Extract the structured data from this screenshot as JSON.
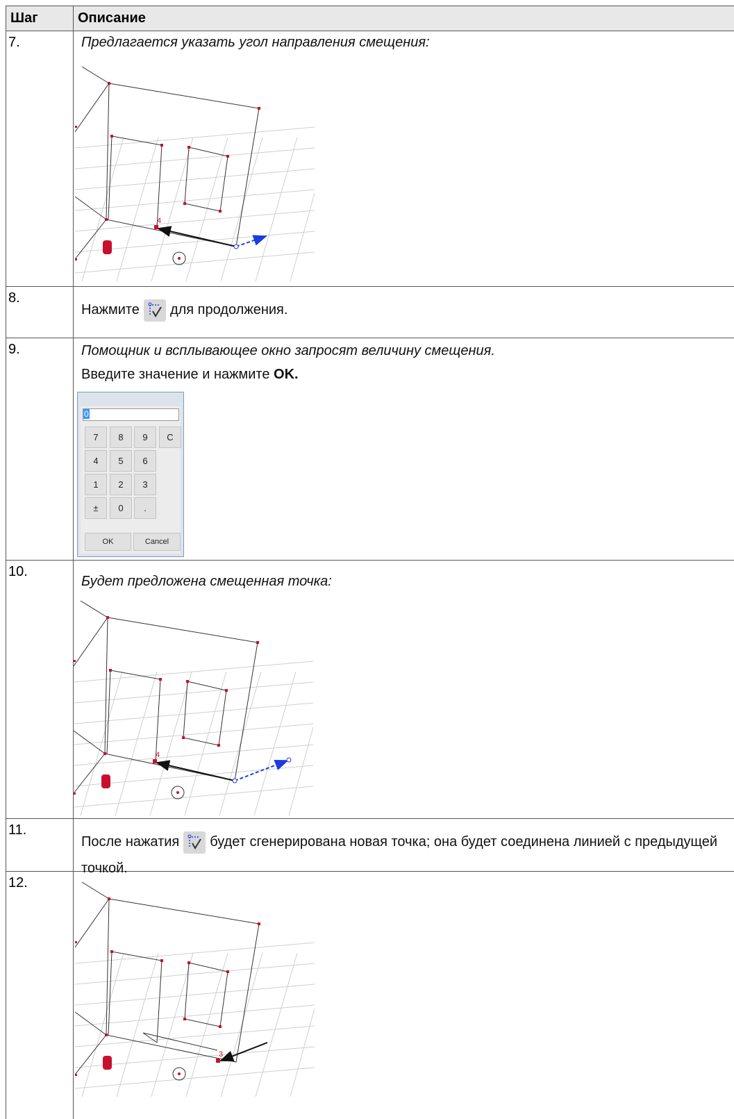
{
  "table": {
    "columns": [
      "Шаг",
      "Описание"
    ],
    "rows": [
      {
        "step": "7.",
        "text": "Предлагается указать угол направления смещения:",
        "figure": {
          "point_label": "4"
        }
      },
      {
        "step": "8.",
        "text_before": "Нажмите",
        "text_after": "для продолжения."
      },
      {
        "step": "9.",
        "text": "Помощник и всплывающее окно запросят величину смещения.",
        "instruction": "Введите значение и нажмите",
        "instruction_bold": "OK.",
        "dialog": {
          "input": "0",
          "keys": [
            "7",
            "8",
            "9",
            "C",
            "4",
            "5",
            "6",
            "1",
            "2",
            "3",
            "±",
            "0",
            "."
          ],
          "buttons": [
            "OK",
            "Cancel"
          ]
        }
      },
      {
        "step": "10.",
        "text": "Будет предложена смещенная точка:",
        "figure": {
          "point_label": "4"
        }
      },
      {
        "step": "11.",
        "text_before": "После нажатия",
        "text_after": "будет сгенерирована новая точка; она будет соединена линией с предыдущей точкой."
      },
      {
        "step": "12.",
        "figure": {
          "point_label": "3"
        }
      }
    ]
  }
}
